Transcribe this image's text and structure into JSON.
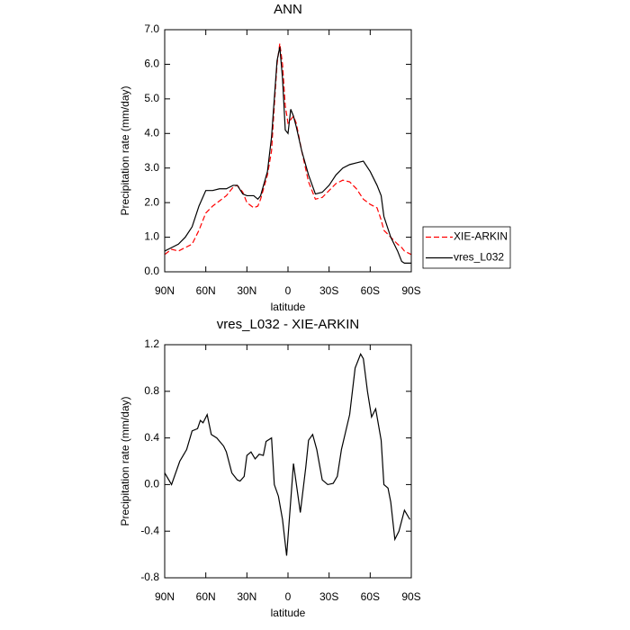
{
  "chart_data": [
    {
      "type": "line",
      "title": "ANN",
      "xlabel": "latitude",
      "ylabel": "Precipitation rate (mm/day)",
      "x": [
        90,
        85,
        80,
        75,
        70,
        65,
        60,
        55,
        50,
        45,
        40,
        37,
        33,
        30,
        25,
        22,
        20,
        15,
        12,
        10,
        8,
        6,
        4,
        2,
        0,
        -2,
        -4,
        -6,
        -10,
        -15,
        -20,
        -25,
        -30,
        -35,
        -40,
        -45,
        -50,
        -55,
        -60,
        -65,
        -68,
        -70,
        -75,
        -80,
        -83,
        -85,
        -90
      ],
      "series": [
        {
          "name": "XIE-ARKIN",
          "color": "#ff0000",
          "linestyle": "dashed",
          "values": [
            0.5,
            0.65,
            0.6,
            0.7,
            0.8,
            1.2,
            1.7,
            1.9,
            2.05,
            2.2,
            2.45,
            2.5,
            2.3,
            2.0,
            1.85,
            1.9,
            2.1,
            2.8,
            3.5,
            4.8,
            6.0,
            6.6,
            6.0,
            4.8,
            4.3,
            4.4,
            4.5,
            4.3,
            3.5,
            2.6,
            2.1,
            2.15,
            2.35,
            2.55,
            2.65,
            2.6,
            2.4,
            2.1,
            1.95,
            1.85,
            1.5,
            1.2,
            1.0,
            0.8,
            0.7,
            0.6,
            0.5
          ]
        },
        {
          "name": "vres_L032",
          "color": "#000000",
          "linestyle": "solid",
          "values": [
            0.6,
            0.7,
            0.8,
            1.0,
            1.3,
            1.9,
            2.35,
            2.35,
            2.4,
            2.4,
            2.5,
            2.5,
            2.25,
            2.2,
            2.2,
            2.1,
            2.2,
            2.9,
            3.9,
            5.0,
            6.1,
            6.5,
            5.6,
            4.1,
            4.0,
            4.7,
            4.5,
            4.2,
            3.5,
            2.8,
            2.25,
            2.3,
            2.5,
            2.8,
            3.0,
            3.1,
            3.15,
            3.2,
            2.9,
            2.5,
            2.2,
            1.6,
            1.0,
            0.6,
            0.3,
            0.25,
            0.25
          ]
        }
      ],
      "xlim": [
        90,
        -90
      ],
      "xticks": [
        {
          "value": 90,
          "label": "90N"
        },
        {
          "value": 60,
          "label": "60N"
        },
        {
          "value": 30,
          "label": "30N"
        },
        0,
        {
          "value": -30,
          "label": "30S"
        },
        {
          "value": -60,
          "label": "60S"
        },
        {
          "value": -90,
          "label": "90S"
        }
      ],
      "ylim": [
        0,
        7
      ],
      "yticks": [
        {
          "value": 0,
          "label": "0.0"
        },
        {
          "value": 1,
          "label": "1.0"
        },
        {
          "value": 2,
          "label": "2.0"
        },
        {
          "value": 3,
          "label": "3.0"
        },
        {
          "value": 4,
          "label": "4.0"
        },
        {
          "value": 5,
          "label": "5.0"
        },
        {
          "value": 6,
          "label": "6.0"
        },
        {
          "value": 7,
          "label": "7.0"
        }
      ],
      "legend": "right"
    },
    {
      "type": "line",
      "title": "vres_L032 - XIE-ARKIN",
      "xlabel": "latitude",
      "ylabel": "Precipitation rate (mm/day)",
      "x": [
        90,
        85,
        79,
        74,
        70,
        66,
        64,
        62,
        59,
        56,
        52,
        47,
        45,
        41,
        37,
        35,
        32,
        30,
        27,
        24,
        21,
        18,
        16,
        12,
        10,
        7,
        4,
        1,
        -4,
        -9,
        -13,
        -15,
        -18,
        -21,
        -25,
        -29,
        -33,
        -36,
        -39,
        -45,
        -49,
        -53,
        -55,
        -58,
        -61,
        -64,
        -68,
        -70,
        -73,
        -75,
        -78,
        -81,
        -85,
        -89
      ],
      "series": [
        {
          "color": "#000000",
          "linestyle": "solid",
          "values": [
            0.1,
            0.0,
            0.2,
            0.3,
            0.46,
            0.48,
            0.55,
            0.53,
            0.6,
            0.43,
            0.4,
            0.33,
            0.28,
            0.1,
            0.04,
            0.03,
            0.07,
            0.25,
            0.28,
            0.22,
            0.26,
            0.25,
            0.37,
            0.4,
            0.0,
            -0.1,
            -0.3,
            -0.61,
            0.18,
            -0.24,
            0.15,
            0.38,
            0.43,
            0.3,
            0.04,
            0.0,
            0.01,
            0.07,
            0.3,
            0.6,
            1.0,
            1.12,
            1.08,
            0.8,
            0.58,
            0.65,
            0.38,
            0.0,
            -0.03,
            -0.15,
            -0.47,
            -0.4,
            -0.22,
            -0.3
          ]
        }
      ],
      "xlim": [
        90,
        -90
      ],
      "xticks": [
        {
          "value": 90,
          "label": "90N"
        },
        {
          "value": 60,
          "label": "60N"
        },
        {
          "value": 30,
          "label": "30N"
        },
        0,
        {
          "value": -30,
          "label": "30S"
        },
        {
          "value": -60,
          "label": "60S"
        },
        {
          "value": -90,
          "label": "90S"
        }
      ],
      "ylim": [
        -0.8,
        1.2
      ],
      "yticks": [
        -0.8,
        -0.4,
        {
          "value": 0,
          "label": "0.0"
        },
        0.4,
        0.8,
        1.2
      ]
    }
  ]
}
